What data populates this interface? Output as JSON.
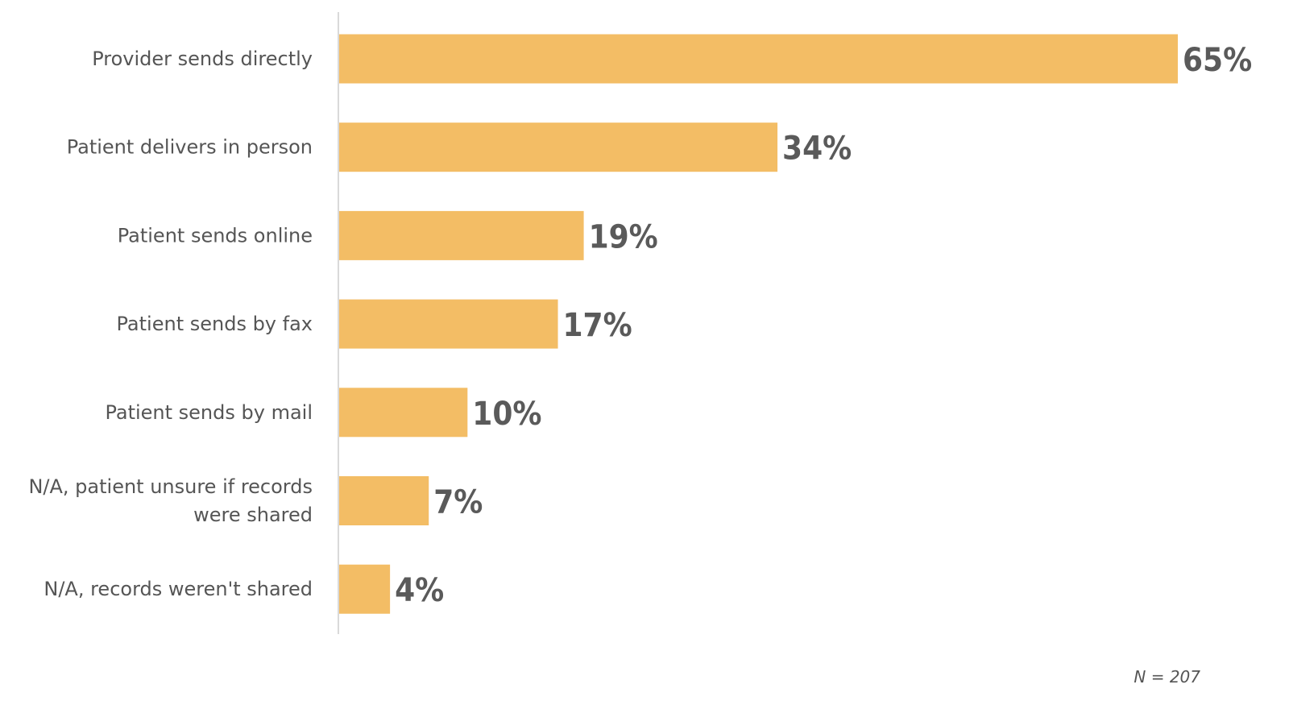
{
  "chart_data": {
    "type": "bar",
    "orientation": "horizontal",
    "categories": [
      "Provider sends directly",
      "Patient delivers in person",
      "Patient sends online",
      "Patient sends by fax",
      "Patient sends by mail",
      "N/A, patient unsure if records were shared",
      "N/A, records weren't shared"
    ],
    "values": [
      65,
      34,
      19,
      17,
      10,
      7,
      4
    ],
    "value_labels": [
      "65%",
      "34%",
      "19%",
      "17%",
      "10%",
      "7%",
      "4%"
    ],
    "unit": "%",
    "xlim": [
      0,
      65
    ],
    "grid": false,
    "legend": "none",
    "bar_color": "#F3BD65",
    "axis_color": "#d9d9d9"
  },
  "note": "N = 207"
}
